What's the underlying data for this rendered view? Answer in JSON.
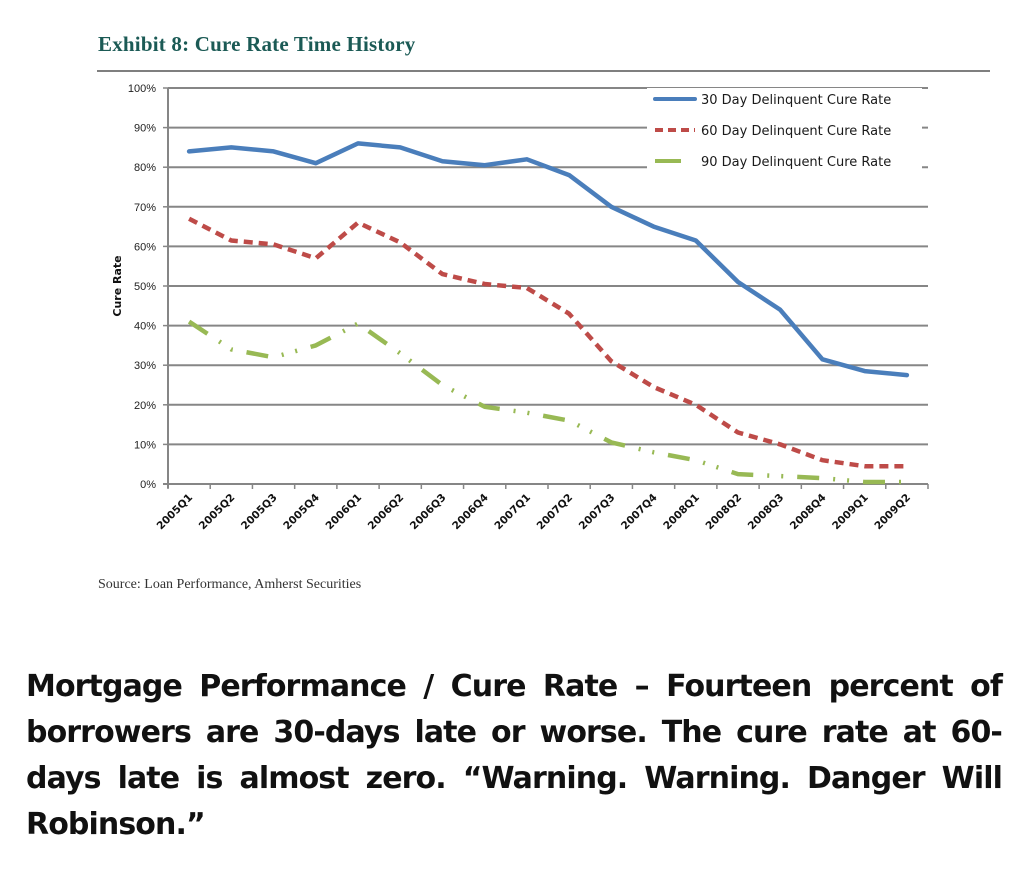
{
  "exhibit": {
    "title": "Exhibit 8:  Cure Rate Time History",
    "source": "Source: Loan Performance, Amherst Securities"
  },
  "caption": "Mortgage Performance / Cure Rate – Fourteen percent of borrowers are 30-days late or worse. The cure rate at 60-days late is almost zero. “Warning. Warning. Danger Will Robinson.”",
  "chart_data": {
    "type": "line",
    "title": "Cure Rate Time History",
    "xlabel": "",
    "ylabel": "Cure Rate",
    "ylim": [
      0,
      100
    ],
    "y_ticks": [
      "0%",
      "10%",
      "20%",
      "30%",
      "40%",
      "50%",
      "60%",
      "70%",
      "80%",
      "90%",
      "100%"
    ],
    "y_unit": "%",
    "grid": "horizontal",
    "legend_position": "top-right",
    "categories": [
      "2005Q1",
      "2005Q2",
      "2005Q3",
      "2005Q4",
      "2006Q1",
      "2006Q2",
      "2006Q3",
      "2006Q4",
      "2007Q1",
      "2007Q2",
      "2007Q3",
      "2007Q4",
      "2008Q1",
      "2008Q2",
      "2008Q3",
      "2008Q4",
      "2009Q1",
      "2009Q2"
    ],
    "series": [
      {
        "name": "30 Day Delinquent Cure Rate",
        "color": "#4a7ebb",
        "style": "solid",
        "values": [
          84,
          85,
          84,
          81,
          86,
          85,
          81.5,
          80.5,
          82,
          78,
          70,
          65,
          61.5,
          51,
          44,
          31.5,
          28.5,
          27.5
        ]
      },
      {
        "name": "60 Day Delinquent Cure Rate",
        "color": "#be4b48",
        "style": "dash",
        "values": [
          67,
          61.5,
          60.5,
          57,
          66,
          61,
          53,
          50.5,
          49.5,
          43,
          31,
          24.5,
          20,
          13,
          10,
          6,
          4.5,
          4.5
        ]
      },
      {
        "name": "90 Day Delinquent Cure Rate",
        "color": "#98b954",
        "style": "long-dash-dot-dot",
        "values": [
          41,
          34,
          32,
          35,
          40.5,
          33,
          25,
          19.5,
          18,
          16,
          10.5,
          8,
          6,
          2.5,
          2,
          1.5,
          0.5,
          0.5
        ]
      }
    ]
  }
}
